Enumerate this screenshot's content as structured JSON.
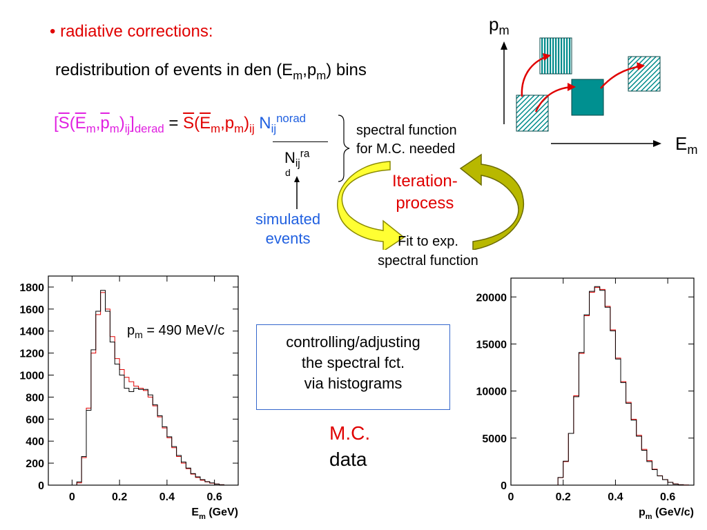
{
  "bullet": "• radiative corrections:",
  "redistribution": {
    "pre": "redistribution of events in den (E",
    "s1": "m",
    "mid": ",p",
    "s2": "m",
    "post": ") bins"
  },
  "formula": {
    "lhs_open": "[",
    "lhs_S": "S",
    "lhs_E": "E",
    "lhs_m1": "m",
    "lhs_comma": ",",
    "lhs_p": "p",
    "lhs_m2": "m",
    "lhs_close": ")",
    "lhs_ij": "ij",
    "lhs_bracket": "]",
    "lhs_derad": "derad",
    "eq": " = ",
    "rhs_S": "S",
    "rhs_open": "(",
    "rhs_E": "E",
    "rhs_m1": "m",
    "rhs_mid": ",p",
    "rhs_m2": "m",
    "rhs_close": ")",
    "rhs_ij": "ij",
    "N": " N",
    "N_sub": "ij",
    "N_sup": "norad",
    "den_N": "N",
    "den_sub": "ij",
    "den_sup": "ra",
    "den_d": "d"
  },
  "brace_text": [
    "spectral function",
    "for M.C. needed"
  ],
  "iteration": [
    "Iteration-",
    "process"
  ],
  "simulated": [
    "simulated",
    "events"
  ],
  "fit": [
    "Fit to exp.",
    "spectral function"
  ],
  "controlling": [
    "controlling/adjusting",
    "the spectral fct.",
    "via histograms"
  ],
  "legend": {
    "mc": "M.C.",
    "data": "data"
  },
  "schematic": {
    "y_label": "p",
    "y_sub": "m",
    "x_label": "E",
    "x_sub": "m"
  },
  "colors": {
    "mc": "#e00000",
    "data": "#000000",
    "box": "#3366cc",
    "teal": "#008b8b",
    "arrow_yellow": "#ffff33"
  },
  "chart_data": [
    {
      "type": "line",
      "annotation": "p_m = 490 MeV/c",
      "xlabel": "E_m (GeV)",
      "xlim": [
        -0.1,
        0.7
      ],
      "ylim": [
        0,
        1900
      ],
      "xticks": [
        "0",
        "0.2",
        "0.4",
        "0.6"
      ],
      "yticks": [
        "0",
        "200",
        "400",
        "600",
        "800",
        "1000",
        "1200",
        "1400",
        "1600",
        "1800"
      ],
      "x": [
        0.0,
        0.02,
        0.04,
        0.06,
        0.08,
        0.1,
        0.12,
        0.14,
        0.16,
        0.18,
        0.2,
        0.22,
        0.24,
        0.26,
        0.28,
        0.3,
        0.32,
        0.34,
        0.36,
        0.38,
        0.4,
        0.42,
        0.44,
        0.46,
        0.48,
        0.5,
        0.52,
        0.54,
        0.56,
        0.58,
        0.6,
        0.62,
        0.64
      ],
      "series": [
        {
          "name": "M.C.",
          "values": [
            0,
            20,
            250,
            700,
            1200,
            1550,
            1750,
            1600,
            1350,
            1150,
            1050,
            980,
            940,
            900,
            880,
            860,
            800,
            720,
            620,
            520,
            430,
            340,
            260,
            200,
            150,
            100,
            70,
            45,
            30,
            18,
            10,
            4,
            0
          ]
        },
        {
          "name": "data",
          "values": [
            0,
            30,
            260,
            680,
            1230,
            1580,
            1770,
            1580,
            1300,
            1100,
            1000,
            880,
            850,
            880,
            870,
            870,
            820,
            730,
            630,
            530,
            440,
            350,
            270,
            210,
            155,
            105,
            75,
            50,
            32,
            20,
            10,
            4,
            0
          ]
        }
      ]
    },
    {
      "type": "line",
      "xlabel": "p_m (GeV/c)",
      "xlim": [
        0,
        0.7
      ],
      "ylim": [
        0,
        22000
      ],
      "xticks": [
        "0",
        "0.2",
        "0.4",
        "0.6"
      ],
      "yticks": [
        "0",
        "5000",
        "10000",
        "15000",
        "20000"
      ],
      "x": [
        0.0,
        0.1,
        0.15,
        0.18,
        0.2,
        0.22,
        0.24,
        0.26,
        0.28,
        0.3,
        0.32,
        0.34,
        0.36,
        0.38,
        0.4,
        0.42,
        0.44,
        0.46,
        0.48,
        0.5,
        0.52,
        0.54,
        0.56,
        0.58,
        0.6,
        0.62,
        0.64,
        0.66,
        0.68
      ],
      "series": [
        {
          "name": "M.C.",
          "values": [
            0,
            0,
            0,
            800,
            2500,
            5500,
            9500,
            14000,
            18000,
            20500,
            21000,
            20800,
            19000,
            16500,
            13500,
            11000,
            8800,
            7000,
            5300,
            3800,
            2600,
            1700,
            1000,
            600,
            300,
            130,
            50,
            15,
            0
          ]
        },
        {
          "name": "data",
          "values": [
            0,
            0,
            0,
            820,
            2550,
            5500,
            9400,
            14100,
            18100,
            20600,
            21100,
            20700,
            18900,
            16400,
            13400,
            10900,
            8700,
            6900,
            5200,
            3700,
            2500,
            1650,
            980,
            590,
            290,
            120,
            45,
            12,
            0
          ]
        }
      ]
    }
  ]
}
